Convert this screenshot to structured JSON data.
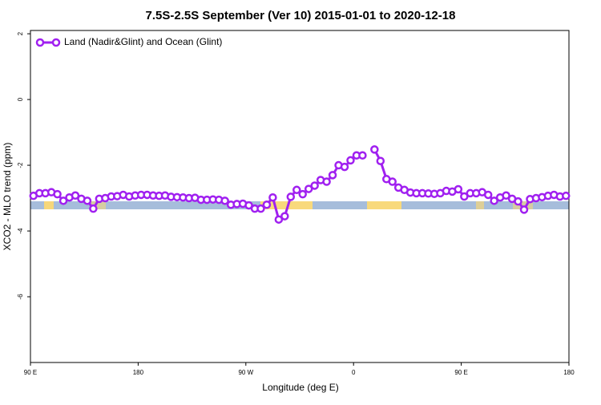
{
  "chart_data": {
    "type": "line",
    "title": "7.5S-2.5S September (Ver 10)   2015-01-01 to 2020-12-18",
    "xlabel": "Longitude (deg E)",
    "ylabel": "XCO2 - MLO trend (ppm)",
    "xlim": [
      90,
      540
    ],
    "ylim": [
      -8,
      2.1
    ],
    "xticks": [
      {
        "value": 90,
        "label": "90 E"
      },
      {
        "value": 180,
        "label": "180"
      },
      {
        "value": 270,
        "label": "90 W"
      },
      {
        "value": 360,
        "label": "0"
      },
      {
        "value": 450,
        "label": "90 E"
      },
      {
        "value": 540,
        "label": "180"
      }
    ],
    "yticks": [
      2,
      0,
      -2,
      -4,
      -6
    ],
    "legend": "upper left",
    "x": [
      92.5,
      97.5,
      102.5,
      107.5,
      112.5,
      117.5,
      122.5,
      127.5,
      132.5,
      137.5,
      142.5,
      147.5,
      152.5,
      157.5,
      162.5,
      167.5,
      172.5,
      177.5,
      182.5,
      187.5,
      192.5,
      197.5,
      202.5,
      207.5,
      212.5,
      217.5,
      222.5,
      227.5,
      232.5,
      237.5,
      242.5,
      247.5,
      252.5,
      257.5,
      262.5,
      267.5,
      272.5,
      277.5,
      282.5,
      287.5,
      292.5,
      297.5,
      302.5,
      307.5,
      312.5,
      317.5,
      322.5,
      327.5,
      332.5,
      337.5,
      342.5,
      347.5,
      352.5,
      357.5,
      362.5,
      367.5,
      372.5,
      377.5,
      382.5,
      387.5,
      392.5,
      397.5,
      402.5,
      407.5,
      412.5,
      417.5,
      422.5,
      427.5,
      432.5,
      437.5,
      442.5,
      447.5,
      452.5,
      457.5,
      462.5,
      467.5,
      472.5,
      477.5,
      482.5,
      487.5,
      492.5,
      497.5,
      502.5,
      507.5,
      512.5,
      517.5,
      522.5,
      527.5,
      532.5,
      537.5
    ],
    "series": [
      {
        "name": "Land (Nadir&Glint) and Ocean (Glint)",
        "color": "#a020f0",
        "values": [
          -2.93,
          -2.85,
          -2.85,
          -2.82,
          -2.88,
          -3.08,
          -2.98,
          -2.92,
          -3.02,
          -3.08,
          -3.32,
          -3.02,
          -3.0,
          -2.95,
          -2.94,
          -2.9,
          -2.95,
          -2.92,
          -2.9,
          -2.9,
          -2.92,
          -2.93,
          -2.92,
          -2.96,
          -2.97,
          -2.98,
          -3.0,
          -2.99,
          -3.05,
          -3.05,
          -3.04,
          -3.05,
          -3.08,
          -3.2,
          -3.18,
          -3.17,
          -3.22,
          -3.32,
          -3.32,
          -3.2,
          -2.98,
          -3.65,
          -3.55,
          -2.96,
          -2.75,
          -2.88,
          -2.72,
          -2.62,
          -2.45,
          -2.5,
          -2.3,
          -2.0,
          -2.05,
          -1.85,
          -1.7,
          -1.7,
          null,
          -1.52,
          -1.87,
          -2.42,
          -2.5,
          -2.68,
          -2.75,
          -2.83,
          -2.85,
          -2.85,
          -2.86,
          -2.87,
          -2.85,
          -2.78,
          -2.8,
          -2.73,
          -2.95,
          -2.85,
          -2.85,
          -2.82,
          -2.9,
          -3.08,
          -2.98,
          -2.92,
          -3.02,
          -3.1,
          -3.35,
          -3.03,
          -3.0,
          -2.97,
          -2.93,
          -2.9,
          -2.95,
          -2.93
        ]
      }
    ]
  }
}
